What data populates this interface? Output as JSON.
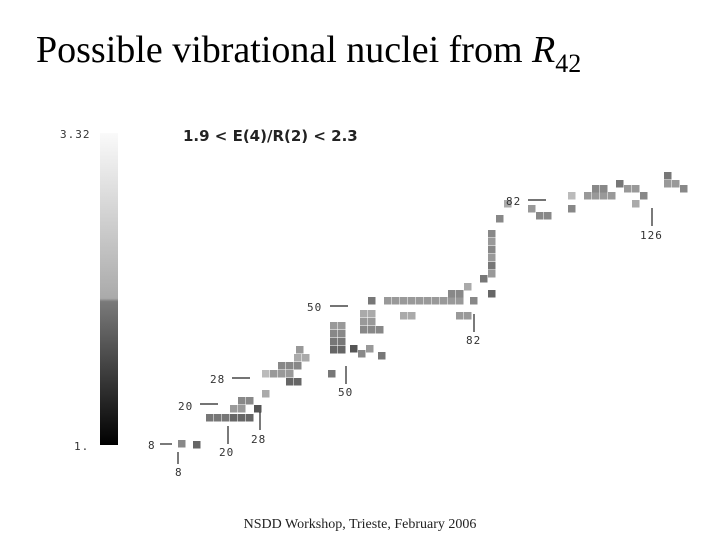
{
  "title": {
    "text": "Possible vibrational nuclei from ",
    "symbol": "R",
    "subscript": "42"
  },
  "chart": {
    "label": "1.9 < E(4)/R(2) < 2.3",
    "colorbar": {
      "max": "3.32",
      "min": "1."
    },
    "magic_labels": {
      "neutron": [
        "8",
        "20",
        "28",
        "50",
        "82",
        "126"
      ],
      "proton": [
        "8",
        "20",
        "28",
        "50",
        "82"
      ]
    }
  },
  "footer": "NSDD Workshop, Trieste, February 2006"
}
